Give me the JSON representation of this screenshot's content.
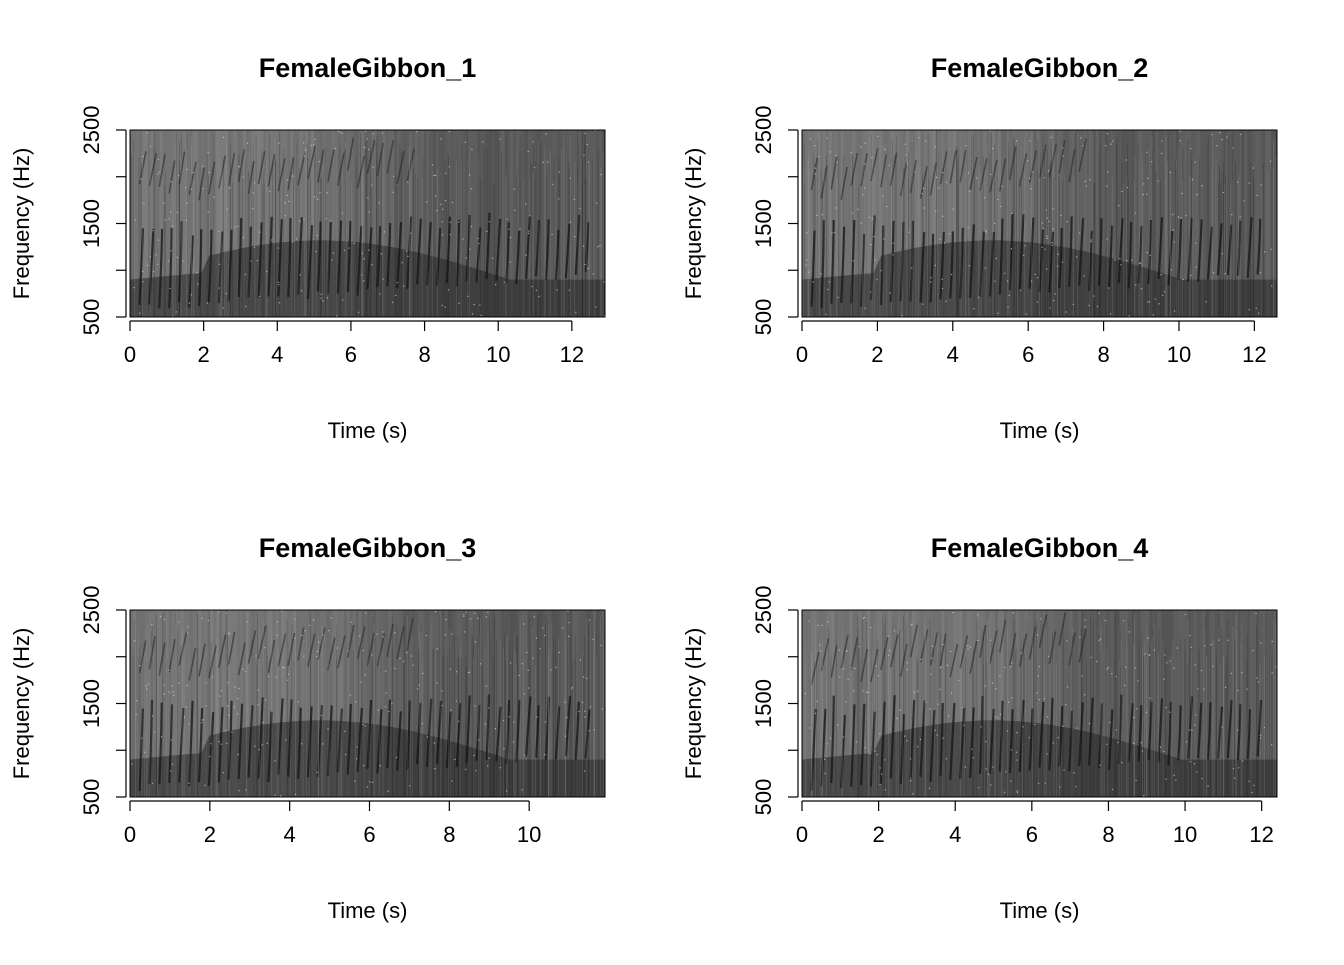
{
  "chart_data": [
    {
      "type": "heatmap",
      "title": "FemaleGibbon_1",
      "xlabel": "Time (s)",
      "ylabel": "Frequency (Hz)",
      "xlim": [
        0,
        12.9
      ],
      "ylim": [
        500,
        2500
      ],
      "xticks": [
        0,
        2,
        4,
        6,
        8,
        10,
        12
      ],
      "xtick_labels": [
        "0",
        "2",
        "4",
        "6",
        "8",
        "10",
        "12"
      ],
      "yticks": [
        500,
        1000,
        1500,
        2000,
        2500
      ],
      "ytick_labels": [
        "500",
        "",
        "1500",
        "",
        "2500"
      ],
      "colormap": [
        "#1a1a1a",
        "#8c8c8c"
      ],
      "seed": 11
    },
    {
      "type": "heatmap",
      "title": "FemaleGibbon_2",
      "xlabel": "Time (s)",
      "ylabel": "Frequency (Hz)",
      "xlim": [
        0,
        12.6
      ],
      "ylim": [
        500,
        2500
      ],
      "xticks": [
        0,
        2,
        4,
        6,
        8,
        10,
        12
      ],
      "xtick_labels": [
        "0",
        "2",
        "4",
        "6",
        "8",
        "10",
        "12"
      ],
      "yticks": [
        500,
        1000,
        1500,
        2000,
        2500
      ],
      "ytick_labels": [
        "500",
        "",
        "1500",
        "",
        "2500"
      ],
      "colormap": [
        "#1a1a1a",
        "#8c8c8c"
      ],
      "seed": 23
    },
    {
      "type": "heatmap",
      "title": "FemaleGibbon_3",
      "xlabel": "Time (s)",
      "ylabel": "Frequency (Hz)",
      "xlim": [
        0,
        11.9
      ],
      "ylim": [
        500,
        2500
      ],
      "xticks": [
        0,
        2,
        4,
        6,
        8,
        10
      ],
      "xtick_labels": [
        "0",
        "2",
        "4",
        "6",
        "8",
        "10"
      ],
      "yticks": [
        500,
        1000,
        1500,
        2000,
        2500
      ],
      "ytick_labels": [
        "500",
        "",
        "1500",
        "",
        "2500"
      ],
      "colormap": [
        "#1a1a1a",
        "#8c8c8c"
      ],
      "seed": 37
    },
    {
      "type": "heatmap",
      "title": "FemaleGibbon_4",
      "xlabel": "Time (s)",
      "ylabel": "Frequency (Hz)",
      "xlim": [
        0,
        12.4
      ],
      "ylim": [
        500,
        2500
      ],
      "xticks": [
        0,
        2,
        4,
        6,
        8,
        10,
        12
      ],
      "xtick_labels": [
        "0",
        "2",
        "4",
        "6",
        "8",
        "10",
        "12"
      ],
      "yticks": [
        500,
        1000,
        1500,
        2000,
        2500
      ],
      "ytick_labels": [
        "500",
        "",
        "1500",
        "",
        "2500"
      ],
      "colormap": [
        "#1a1a1a",
        "#8c8c8c"
      ],
      "seed": 53
    }
  ]
}
